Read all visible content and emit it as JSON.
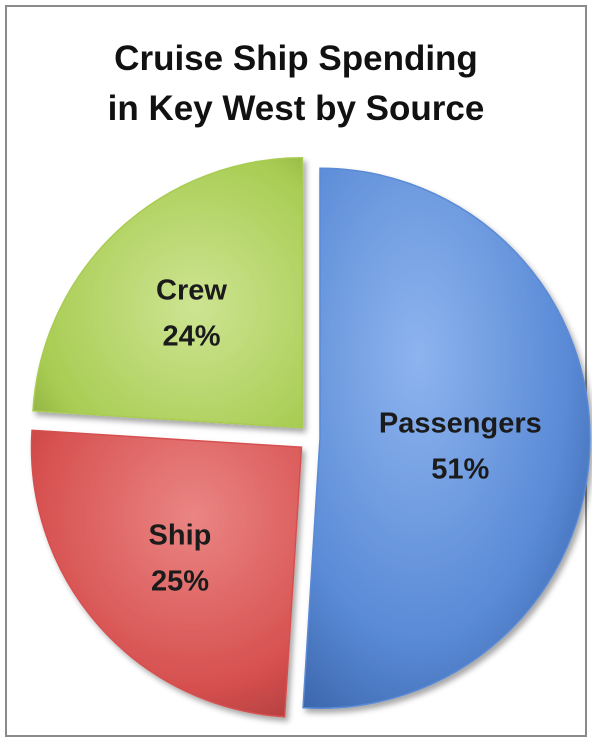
{
  "chart_data": {
    "type": "pie",
    "title_lines": [
      "Cruise Ship Spending",
      "in Key West by Source"
    ],
    "categories": [
      "Passengers",
      "Ship",
      "Crew"
    ],
    "values": [
      51,
      25,
      24
    ],
    "value_labels": [
      "51%",
      "25%",
      "24%"
    ],
    "colors": [
      "#5a8ad6",
      "#d6504f",
      "#a8cc52"
    ],
    "exploded": true,
    "legend": "none"
  }
}
